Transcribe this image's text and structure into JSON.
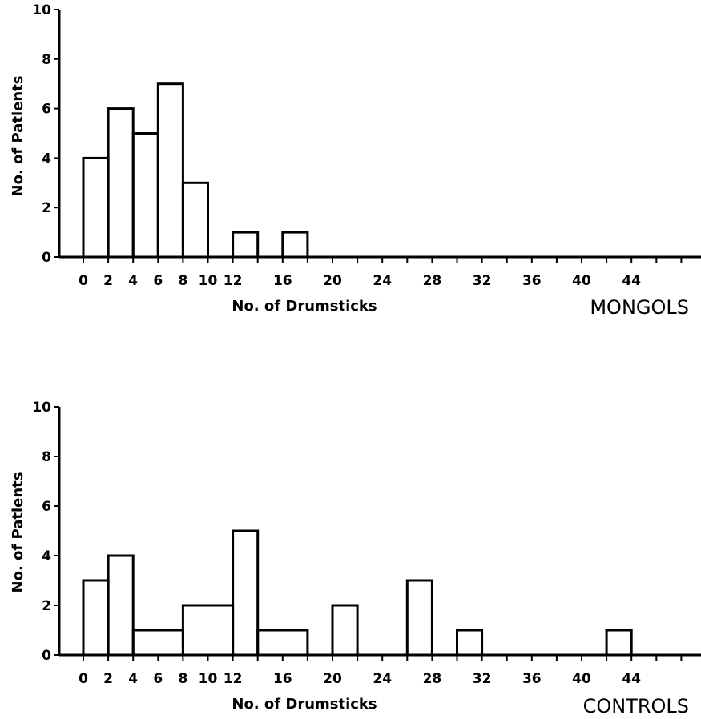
{
  "chart_data": [
    {
      "type": "bar",
      "panel_label": "MONGOLS",
      "xlabel": "No. of Drumsticks",
      "ylabel": "No. of Patients",
      "xlim": [
        0,
        50
      ],
      "ylim": [
        0,
        10
      ],
      "x_ticks": [
        "0",
        "2",
        "4",
        "6",
        "8",
        "10",
        "12",
        "16",
        "20",
        "24",
        "28",
        "32",
        "36",
        "40",
        "44"
      ],
      "y_ticks": [
        "0",
        "2",
        "4",
        "6",
        "8",
        "10"
      ],
      "bins": [
        {
          "start": 0,
          "end": 2,
          "count": 4
        },
        {
          "start": 2,
          "end": 4,
          "count": 6
        },
        {
          "start": 4,
          "end": 6,
          "count": 5
        },
        {
          "start": 6,
          "end": 8,
          "count": 7
        },
        {
          "start": 8,
          "end": 10,
          "count": 3
        },
        {
          "start": 12,
          "end": 14,
          "count": 1
        },
        {
          "start": 16,
          "end": 18,
          "count": 1
        }
      ]
    },
    {
      "type": "bar",
      "panel_label": "CONTROLS",
      "xlabel": "No. of Drumsticks",
      "ylabel": "No. of Patients",
      "xlim": [
        0,
        50
      ],
      "ylim": [
        0,
        10
      ],
      "x_ticks": [
        "0",
        "2",
        "4",
        "6",
        "8",
        "10",
        "12",
        "16",
        "20",
        "24",
        "28",
        "32",
        "36",
        "40",
        "44"
      ],
      "y_ticks": [
        "0",
        "2",
        "4",
        "6",
        "8",
        "10"
      ],
      "bins": [
        {
          "start": 0,
          "end": 2,
          "count": 3
        },
        {
          "start": 2,
          "end": 4,
          "count": 4
        },
        {
          "start": 4,
          "end": 8,
          "count": 1
        },
        {
          "start": 8,
          "end": 12,
          "count": 2
        },
        {
          "start": 12,
          "end": 14,
          "count": 5
        },
        {
          "start": 14,
          "end": 18,
          "count": 1
        },
        {
          "start": 20,
          "end": 22,
          "count": 2
        },
        {
          "start": 26,
          "end": 28,
          "count": 3
        },
        {
          "start": 30,
          "end": 32,
          "count": 1
        },
        {
          "start": 42,
          "end": 44,
          "count": 1
        }
      ]
    }
  ]
}
